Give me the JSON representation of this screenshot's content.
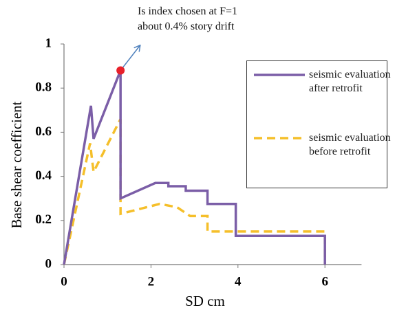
{
  "chart_data": {
    "type": "line",
    "annotation": [
      "Is index chosen at F=1",
      "about 0.4% story drift"
    ],
    "marker": {
      "x": 1.3,
      "y": 0.88,
      "color": "#e8202a"
    },
    "arrow_color": "#4f81bd",
    "xlabel": "SD cm",
    "ylabel": "Base shear coefficient",
    "xlim": [
      0,
      7
    ],
    "ylim": [
      0,
      1
    ],
    "xticks": [
      0,
      2,
      4,
      6
    ],
    "yticks": [
      0,
      0.2,
      0.4,
      0.6,
      0.8,
      1
    ],
    "grid": false,
    "series": [
      {
        "name": "seismic evaluation after retrofit",
        "color": "#7b5ea7",
        "dashed": false,
        "x": [
          0,
          0.62,
          0.68,
          1.3,
          1.3,
          2.1,
          2.4,
          2.4,
          2.8,
          2.8,
          3.3,
          3.3,
          3.95,
          3.95,
          6.0,
          6.0
        ],
        "values": [
          0,
          0.72,
          0.57,
          0.88,
          0.3,
          0.37,
          0.37,
          0.355,
          0.355,
          0.335,
          0.335,
          0.275,
          0.275,
          0.13,
          0.13,
          0
        ]
      },
      {
        "name": "seismic evaluation before retrofit",
        "color": "#f5bf2a",
        "dashed": true,
        "x": [
          0,
          0.6,
          0.68,
          1.3,
          1.3,
          2.2,
          2.6,
          2.9,
          3.3,
          3.3,
          6.0,
          6.0
        ],
        "values": [
          0,
          0.55,
          0.42,
          0.66,
          0.23,
          0.275,
          0.26,
          0.22,
          0.22,
          0.15,
          0.15,
          0
        ]
      }
    ]
  }
}
